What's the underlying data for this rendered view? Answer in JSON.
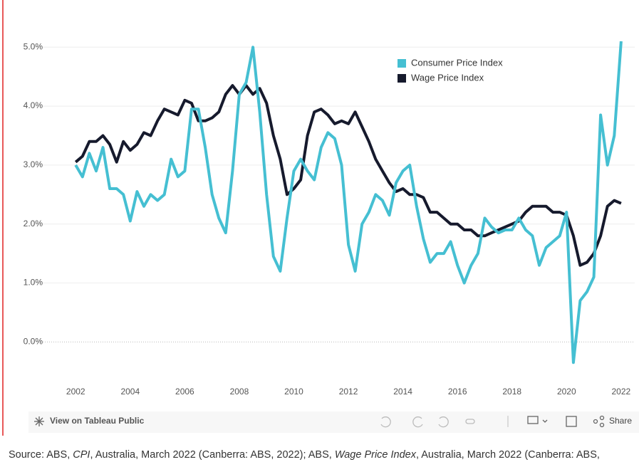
{
  "chart_data": {
    "type": "line",
    "x": [
      2002,
      2002.25,
      2002.5,
      2002.75,
      2003,
      2003.25,
      2003.5,
      2003.75,
      2004,
      2004.25,
      2004.5,
      2004.75,
      2005,
      2005.25,
      2005.5,
      2005.75,
      2006,
      2006.25,
      2006.5,
      2006.75,
      2007,
      2007.25,
      2007.5,
      2007.75,
      2008,
      2008.25,
      2008.5,
      2008.75,
      2009,
      2009.25,
      2009.5,
      2009.75,
      2010,
      2010.25,
      2010.5,
      2010.75,
      2011,
      2011.25,
      2011.5,
      2011.75,
      2012,
      2012.25,
      2012.5,
      2012.75,
      2013,
      2013.25,
      2013.5,
      2013.75,
      2014,
      2014.25,
      2014.5,
      2014.75,
      2015,
      2015.25,
      2015.5,
      2015.75,
      2016,
      2016.25,
      2016.5,
      2016.75,
      2017,
      2017.25,
      2017.5,
      2017.75,
      2018,
      2018.25,
      2018.5,
      2018.75,
      2019,
      2019.25,
      2019.5,
      2019.75,
      2020,
      2020.25,
      2020.5,
      2020.75,
      2021,
      2021.25,
      2021.5,
      2021.75,
      2022
    ],
    "series": [
      {
        "name": "Consumer Price Index",
        "color": "#45bfd2",
        "values": [
          3.0,
          2.8,
          3.2,
          2.9,
          3.3,
          2.6,
          2.6,
          2.5,
          2.05,
          2.55,
          2.3,
          2.5,
          2.4,
          2.5,
          3.1,
          2.8,
          2.9,
          3.95,
          3.95,
          3.3,
          2.5,
          2.1,
          1.85,
          2.9,
          4.2,
          4.4,
          5.0,
          3.9,
          2.5,
          1.45,
          1.2,
          2.1,
          2.9,
          3.1,
          2.9,
          2.75,
          3.3,
          3.55,
          3.45,
          3.0,
          1.65,
          1.2,
          2.0,
          2.2,
          2.5,
          2.4,
          2.15,
          2.7,
          2.9,
          3.0,
          2.3,
          1.75,
          1.35,
          1.5,
          1.5,
          1.7,
          1.3,
          1.0,
          1.3,
          1.5,
          2.1,
          1.95,
          1.85,
          1.9,
          1.9,
          2.1,
          1.9,
          1.8,
          1.3,
          1.6,
          1.7,
          1.8,
          2.2,
          -0.35,
          0.7,
          0.85,
          1.1,
          3.85,
          3.0,
          3.5,
          5.1
        ]
      },
      {
        "name": "Wage Price Index",
        "color": "#161a2d",
        "values": [
          3.05,
          3.15,
          3.4,
          3.4,
          3.5,
          3.35,
          3.05,
          3.4,
          3.25,
          3.35,
          3.55,
          3.5,
          3.75,
          3.95,
          3.9,
          3.85,
          4.1,
          4.05,
          3.75,
          3.75,
          3.8,
          3.9,
          4.2,
          4.35,
          4.2,
          4.35,
          4.2,
          4.3,
          4.05,
          3.5,
          3.1,
          2.5,
          2.6,
          2.75,
          3.5,
          3.9,
          3.95,
          3.85,
          3.7,
          3.75,
          3.7,
          3.9,
          3.65,
          3.4,
          3.1,
          2.9,
          2.7,
          2.55,
          2.6,
          2.5,
          2.5,
          2.45,
          2.2,
          2.2,
          2.1,
          2.0,
          2.0,
          1.9,
          1.9,
          1.8,
          1.8,
          1.85,
          1.9,
          1.95,
          2.0,
          2.05,
          2.2,
          2.3,
          2.3,
          2.3,
          2.2,
          2.2,
          2.15,
          1.8,
          1.3,
          1.35,
          1.5,
          1.8,
          2.3,
          2.4,
          2.35
        ]
      }
    ],
    "xlim": [
      2000.4,
      2022.5
    ],
    "xticks": [
      2002,
      2004,
      2006,
      2008,
      2010,
      2012,
      2014,
      2016,
      2018,
      2020,
      2022
    ],
    "ylim": [
      -0.6,
      5.8
    ],
    "yticks": [
      {
        "value": 0,
        "label": "0.0%"
      },
      {
        "value": 1,
        "label": "1.0%"
      },
      {
        "value": 2,
        "label": "2.0%"
      },
      {
        "value": 3,
        "label": "3.0%"
      },
      {
        "value": 4,
        "label": "4.0%"
      },
      {
        "value": 5,
        "label": "5.0%"
      }
    ],
    "grid": true,
    "legend": "upper right"
  },
  "toolbar": {
    "view": "View on Tableau Public",
    "share": "Share"
  },
  "source": [
    "Source: ABS, ",
    "CPI",
    ", Australia, March 2022 (Canberra: ABS, 2022); ABS, ",
    "Wage Price Index",
    ", Australia, March 2022 (Canberra: ABS,"
  ]
}
